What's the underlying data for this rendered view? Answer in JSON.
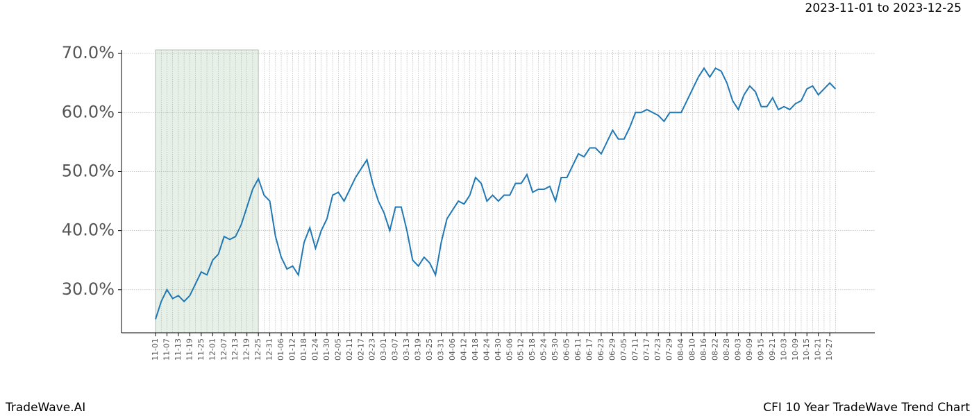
{
  "chart_data": {
    "type": "line",
    "subtitle": "2023-11-01 to 2023-12-25",
    "footer_left": "TradeWave.AI",
    "footer_right": "CFI 10 Year TradeWave Trend Chart",
    "categories": [
      "11-01",
      null,
      "11-07",
      null,
      "11-13",
      null,
      "11-19",
      null,
      "11-25",
      null,
      "12-01",
      null,
      "12-07",
      null,
      "12-13",
      null,
      "12-19",
      null,
      "12-25",
      null,
      "12-31",
      null,
      "01-06",
      null,
      "01-12",
      null,
      "01-18",
      null,
      "01-24",
      null,
      "01-30",
      null,
      "02-05",
      null,
      "02-11",
      null,
      "02-17",
      null,
      "02-23",
      null,
      "03-01",
      null,
      "03-07",
      null,
      "03-13",
      null,
      "03-19",
      null,
      "03-25",
      null,
      "03-31",
      null,
      "04-06",
      null,
      "04-12",
      null,
      "04-18",
      null,
      "04-24",
      null,
      "04-30",
      null,
      "05-06",
      null,
      "05-12",
      null,
      "05-18",
      null,
      "05-24",
      null,
      "05-30",
      null,
      "06-05",
      null,
      "06-11",
      null,
      "06-17",
      null,
      "06-23",
      null,
      "06-29",
      null,
      "07-05",
      null,
      "07-11",
      null,
      "07-17",
      null,
      "07-23",
      null,
      "07-29",
      null,
      "08-04",
      null,
      "08-10",
      null,
      "08-16",
      null,
      "08-22",
      null,
      "08-28",
      null,
      "09-03",
      null,
      "09-09",
      null,
      "09-15",
      null,
      "09-21",
      null,
      "10-03",
      null,
      "10-09",
      null,
      "10-15",
      null,
      "10-21",
      null,
      "10-27",
      null
    ],
    "values": [
      25,
      28,
      30,
      28.5,
      29,
      28,
      29,
      31,
      33,
      32.5,
      35,
      36,
      39,
      38.5,
      39,
      41,
      44,
      47,
      48.8,
      46,
      45,
      39,
      35.5,
      33.5,
      34,
      32.5,
      38,
      40.5,
      37,
      40,
      42,
      46,
      46.5,
      45,
      47,
      49,
      50.5,
      52,
      48,
      45,
      43,
      40,
      44,
      44,
      40,
      35,
      34,
      35.5,
      34.5,
      32.5,
      38,
      42,
      43.5,
      45,
      44.5,
      46,
      49,
      48,
      45,
      46,
      45,
      46,
      46,
      48,
      48,
      49.5,
      46.5,
      47,
      47,
      47.5,
      45,
      49,
      49,
      51,
      53,
      52.5,
      54,
      54,
      53,
      55,
      57,
      55.5,
      55.5,
      57.5,
      60,
      60,
      60.5,
      60,
      59.5,
      58.5,
      60,
      60,
      60,
      62,
      64,
      66,
      67.5,
      66,
      67.5,
      67,
      65,
      62,
      60.5,
      63,
      64.5,
      63.5,
      61,
      61,
      62.5,
      60.5,
      61,
      60.5,
      61.5,
      62,
      64,
      64.5,
      63,
      64,
      65,
      64
    ],
    "color": "#1f77b4",
    "highlight_range": [
      "11-01",
      "12-25"
    ],
    "highlight_color": "#e6f0e6",
    "ylim": [
      22.7,
      70.6
    ],
    "yticks": [
      {
        "value": 30,
        "label": "30.0%"
      },
      {
        "value": 40,
        "label": "40.0%"
      },
      {
        "value": 50,
        "label": "50.0%"
      },
      {
        "value": 60,
        "label": "60.0%"
      },
      {
        "value": 70,
        "label": "70.0%"
      }
    ],
    "grid": true
  }
}
